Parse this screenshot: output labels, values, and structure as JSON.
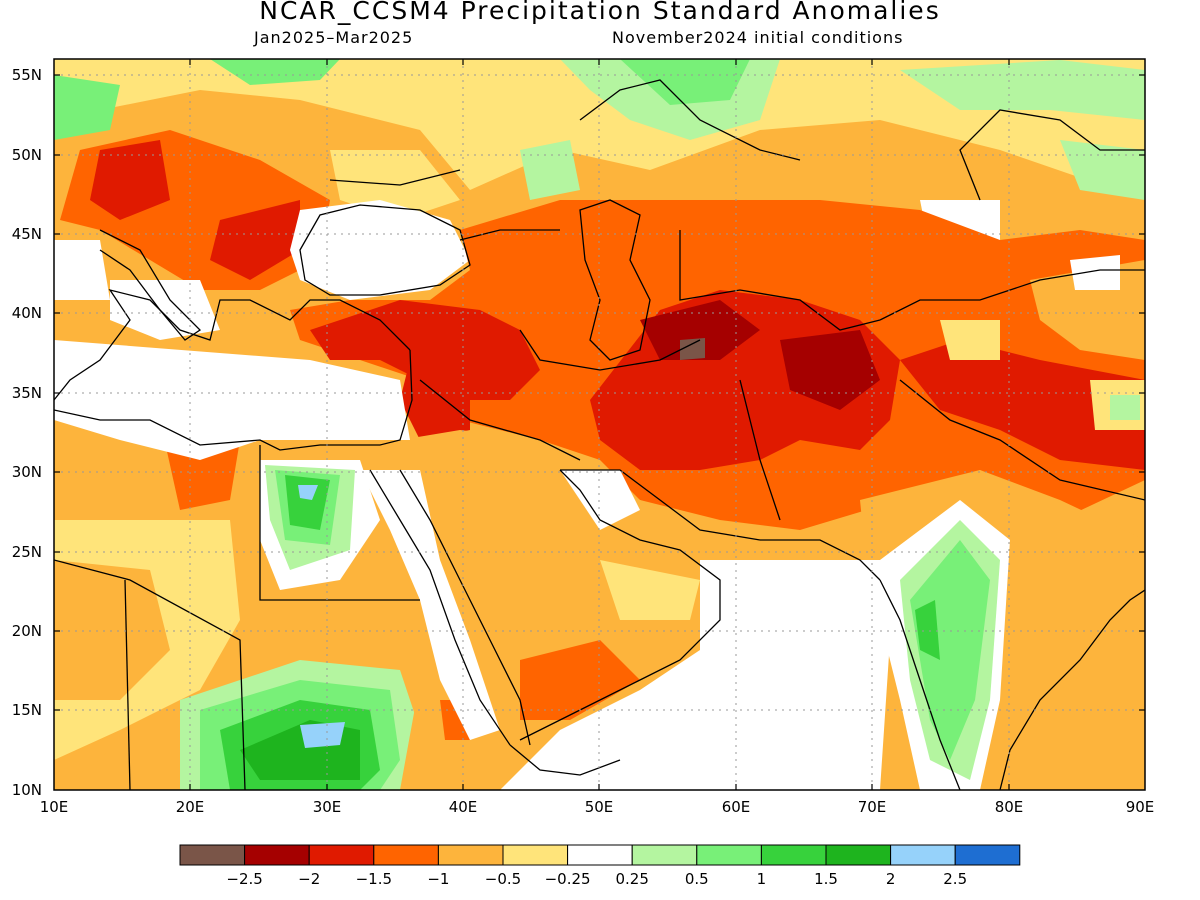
{
  "title": "NCAR_CCSM4 Precipitation Standard Anomalies",
  "subtitle_left": "Jan2025–Mar2025",
  "subtitle_right": "November2024 initial conditions",
  "lat_labels": [
    "55N",
    "50N",
    "45N",
    "40N",
    "35N",
    "30N",
    "25N",
    "20N",
    "15N",
    "10N"
  ],
  "lon_labels": [
    "10E",
    "20E",
    "30E",
    "40E",
    "50E",
    "60E",
    "70E",
    "80E",
    "90E"
  ],
  "colorbar": {
    "colors": [
      "#7a5548",
      "#a50000",
      "#e01a00",
      "#ff6400",
      "#fdb43c",
      "#ffe47a",
      "#ffffff",
      "#b4f5a0",
      "#78f078",
      "#37d23c",
      "#1eb41e",
      "#96d2fa",
      "#1e6ed2"
    ],
    "labels": [
      "−2.5",
      "−2",
      "−1.5",
      "−1",
      "−0.5",
      "−0.25",
      "0.25",
      "0.5",
      "1",
      "1.5",
      "2",
      "2.5"
    ]
  },
  "map": {
    "lat_range": [
      10,
      56
    ],
    "lon_range": [
      10,
      90
    ],
    "grid": "dotted",
    "colors": {
      "coast": "#000000",
      "grid": "#999999"
    }
  }
}
